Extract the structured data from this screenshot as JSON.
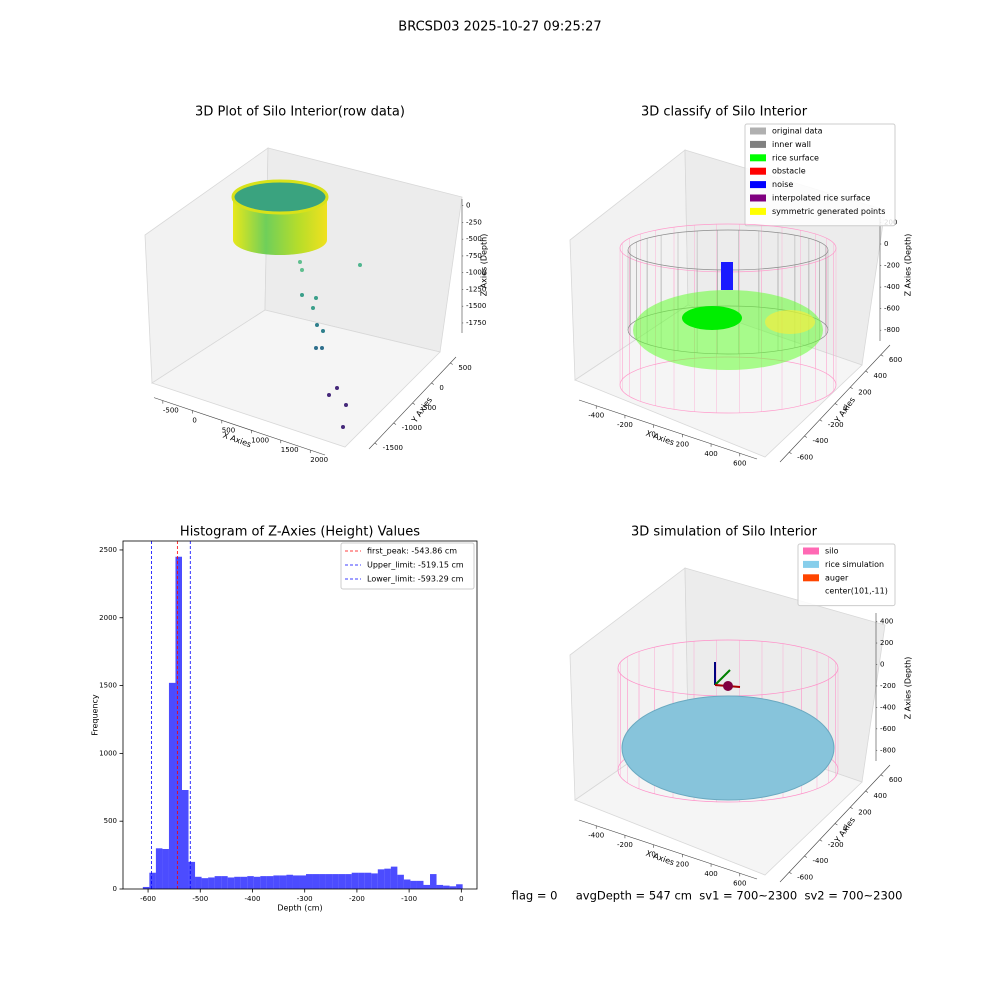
{
  "title": "BRCSD03 2025-10-27 09:25:27",
  "footer": "flag = 0     avgDepth = 547 cm  sv1 = 700~2300  sv2 = 700~2300",
  "chart_data": [
    {
      "type": "scatter3d",
      "title": "3D Plot of Silo Interior(row data)",
      "xlabel": "X Axies",
      "ylabel": "Y Axies",
      "zlabel": "Z Axies (Depth)",
      "xlim": [
        -650,
        2250
      ],
      "xticks": [
        -500,
        0,
        500,
        1000,
        1500,
        2000
      ],
      "ylim": [
        -1650,
        650
      ],
      "yticks": [
        -1500,
        -1000,
        -500,
        0,
        500
      ],
      "zlim": [
        -1900,
        100
      ],
      "zticks": [
        0,
        -250,
        -500,
        -750,
        -1000,
        -1250,
        -1500,
        -1750
      ]
    },
    {
      "type": "scatter3d",
      "title": "3D classify of Silo Interior",
      "xlabel": "X Axies",
      "ylabel": "Y Axies",
      "zlabel": "Z Axies (Depth)",
      "xlim": [
        -520,
        720
      ],
      "xticks": [
        -400,
        -200,
        0,
        200,
        400,
        600
      ],
      "ylim": [
        -720,
        720
      ],
      "yticks": [
        -600,
        -400,
        -200,
        0,
        200,
        400,
        600
      ],
      "zlim": [
        -900,
        260
      ],
      "zticks": [
        200,
        0,
        -200,
        -400,
        -600,
        -800
      ],
      "legend": [
        {
          "name": "original data",
          "color": "#b0b0b0"
        },
        {
          "name": "inner wall",
          "color": "#808080"
        },
        {
          "name": "rice surface",
          "color": "#00ff00"
        },
        {
          "name": "obstacle",
          "color": "#ff0000"
        },
        {
          "name": "noise",
          "color": "#0000ff"
        },
        {
          "name": "interpolated rice surface",
          "color": "#800080"
        },
        {
          "name": "symmetric generated points",
          "color": "#ffff00"
        }
      ]
    },
    {
      "type": "histogram",
      "title": "Histogram of Z-Axies (Height) Values",
      "xlabel": "Depth (cm)",
      "ylabel": "Frequency",
      "color": "#0000ff",
      "bins": [
        -610,
        -597.5,
        -585,
        -572.5,
        -560,
        -547.5,
        -535,
        -522.5,
        -510,
        -497.5,
        -485,
        -472.5,
        -460,
        -447.5,
        -435,
        -422.5,
        -410,
        -397.5,
        -385,
        -372.5,
        -360,
        -347.5,
        -335,
        -322.5,
        -310,
        -297.5,
        -285,
        -272.5,
        -260,
        -247.5,
        -235,
        -222.5,
        -210,
        -197.5,
        -185,
        -172.5,
        -160,
        -147.5,
        -135,
        -122.5,
        -110,
        -97.5,
        -85,
        -72.5,
        -60,
        -47.5,
        -35,
        -22.5,
        -10,
        2.5
      ],
      "values": [
        15,
        120,
        300,
        295,
        1520,
        2450,
        730,
        200,
        90,
        80,
        85,
        95,
        95,
        85,
        90,
        90,
        95,
        90,
        95,
        95,
        100,
        100,
        105,
        100,
        100,
        110,
        110,
        110,
        110,
        110,
        110,
        110,
        120,
        120,
        120,
        115,
        145,
        150,
        165,
        105,
        70,
        60,
        60,
        30,
        110,
        30,
        25,
        20,
        35
      ],
      "xlim": [
        -648,
        30
      ],
      "xticks": [
        -600,
        -500,
        -400,
        -300,
        -200,
        -100,
        0
      ],
      "ylim": [
        0,
        2566
      ],
      "yticks": [
        0,
        500,
        1000,
        1500,
        2000,
        2500
      ],
      "vlines": [
        {
          "name": "first_peak: -543.86 cm",
          "value": -543.86,
          "color": "#ff0000"
        },
        {
          "name": "Upper_limit: -519.15 cm",
          "value": -519.15,
          "color": "#0000ff"
        },
        {
          "name": "Lower_limit: -593.29 cm",
          "value": -593.29,
          "color": "#0000ff"
        }
      ]
    },
    {
      "type": "scatter3d",
      "title": "3D simulation of Silo Interior",
      "xlabel": "X Axies",
      "ylabel": "Y Axies",
      "zlabel": "Z Axies (Depth)",
      "xlim": [
        -520,
        720
      ],
      "xticks": [
        -400,
        -200,
        0,
        200,
        400,
        600
      ],
      "ylim": [
        -720,
        720
      ],
      "yticks": [
        -600,
        -400,
        -200,
        0,
        200,
        400,
        600
      ],
      "zlim": [
        -900,
        480
      ],
      "zticks": [
        400,
        200,
        0,
        -200,
        -400,
        -600,
        -800
      ],
      "legend": [
        {
          "name": "silo",
          "color": "#ff69b4"
        },
        {
          "name": "rice simulation",
          "color": "#87ceeb"
        },
        {
          "name": "auger",
          "color": "#ff4500"
        },
        {
          "name": "center(101,-11)"
        }
      ]
    }
  ]
}
